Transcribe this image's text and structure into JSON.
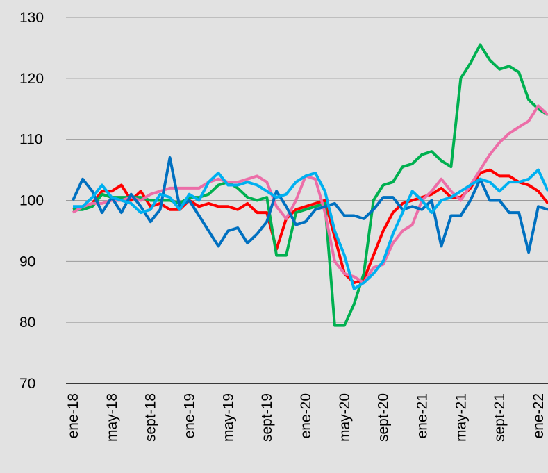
{
  "chart_data": {
    "type": "line",
    "categories": [
      "ene-18",
      null,
      null,
      null,
      "may-18",
      null,
      null,
      null,
      "sept-18",
      null,
      null,
      null,
      "ene-19",
      null,
      null,
      null,
      "may-19",
      null,
      null,
      null,
      "sept-19",
      null,
      null,
      null,
      "ene-20",
      null,
      null,
      null,
      "may-20",
      null,
      null,
      null,
      "sept-20",
      null,
      null,
      null,
      "ene-21",
      null,
      null,
      null,
      "may-21",
      null,
      null,
      null,
      "sept-21",
      null,
      null,
      null,
      "ene-22",
      null
    ],
    "series": [
      {
        "color": "#ff0000",
        "values": [
          98.5,
          99,
          99.5,
          101.5,
          101.5,
          102.5,
          100,
          101.5,
          99,
          99.5,
          98.5,
          98.5,
          100,
          99,
          99.5,
          99,
          99,
          98.5,
          99.5,
          98,
          98,
          92,
          97,
          98.5,
          99,
          99.5,
          100,
          94,
          88,
          86.5,
          87,
          91,
          95,
          98,
          99.5,
          100,
          100.5,
          101,
          102,
          100.5,
          100.5,
          102,
          104.5,
          105,
          104,
          104,
          103,
          102.5,
          101.5,
          99.5
        ]
      },
      {
        "color": "#00b050",
        "values": [
          98.5,
          98.5,
          99,
          101,
          100.5,
          100.5,
          100.5,
          100.5,
          100,
          100,
          100,
          99.5,
          100.5,
          100.5,
          101,
          102.5,
          103,
          102,
          100.5,
          100,
          100.5,
          91,
          91,
          98,
          98.5,
          99,
          99.5,
          79.5,
          79.5,
          83,
          88,
          100,
          102.5,
          103,
          105.5,
          106,
          107.5,
          108,
          106.5,
          105.5,
          120,
          122.5,
          125.5,
          123,
          121.5,
          122,
          121,
          116.5,
          115,
          114
        ]
      },
      {
        "color": "#ec6ea8",
        "values": [
          98,
          99,
          99.5,
          99.5,
          100,
          100,
          100.5,
          100,
          101,
          101.5,
          102,
          102,
          102,
          102,
          103,
          103.5,
          103,
          103,
          103.5,
          104,
          103,
          99,
          97,
          100,
          104,
          103.5,
          98,
          90,
          88,
          87.5,
          86.5,
          89,
          89.5,
          93,
          95,
          96,
          100,
          101.5,
          103.5,
          101.5,
          100,
          102.5,
          105,
          107.5,
          109.5,
          111,
          112,
          113,
          115.5,
          114
        ]
      },
      {
        "color": "#0070c0",
        "values": [
          100,
          103.5,
          101.5,
          98,
          100.5,
          98,
          101,
          99,
          96.5,
          98.5,
          107,
          99,
          100,
          97.5,
          95,
          92.5,
          95,
          95.5,
          93,
          94.5,
          96.5,
          101.5,
          99,
          96,
          96.5,
          98.5,
          99,
          99.5,
          97.5,
          97.5,
          97,
          98.5,
          100.5,
          100.5,
          98.5,
          99,
          98.5,
          100,
          92.5,
          97.5,
          97.5,
          100,
          103.5,
          100,
          100,
          98,
          98,
          91.5,
          99,
          98.5
        ]
      },
      {
        "color": "#00b0f0",
        "values": [
          99,
          99,
          100.5,
          102.5,
          100.5,
          100,
          99.5,
          98,
          98.5,
          101,
          100.5,
          98.5,
          101,
          100,
          103,
          104.5,
          102.5,
          102.5,
          103,
          102.5,
          101.5,
          100.5,
          101,
          103,
          104,
          104.5,
          101.5,
          95,
          91,
          85.5,
          86.5,
          88,
          90,
          94.5,
          98,
          101.5,
          100,
          98,
          100,
          100.5,
          101.5,
          102.5,
          103.5,
          103,
          101.5,
          103,
          103,
          103.5,
          105,
          101.5
        ]
      }
    ],
    "ylim": [
      70,
      130
    ],
    "yticks": [
      70,
      80,
      90,
      100,
      110,
      120,
      130
    ],
    "grid": true
  }
}
